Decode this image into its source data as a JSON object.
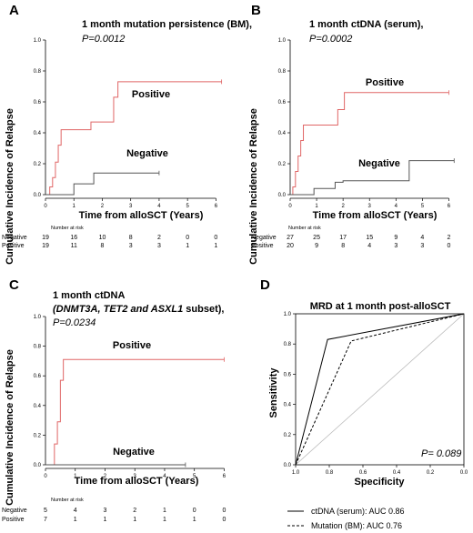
{
  "colors": {
    "positive": "#e06666",
    "negative": "#555555",
    "axis": "#000000",
    "diagonal": "#bbbbbb"
  },
  "chart_data": [
    {
      "panel": "A",
      "type": "line",
      "title": "1 month mutation persistence  (BM),",
      "pvalue_label": "P=0.0012",
      "xlabel": "Time from alloSCT (Years)",
      "ylabel": "Cumulative Incidence of Relapse",
      "xlim": [
        0,
        6.5
      ],
      "ylim": [
        0,
        1.0
      ],
      "xticks": [
        0,
        1,
        2,
        3,
        4,
        5,
        6
      ],
      "yticks": [
        0.0,
        0.2,
        0.4,
        0.6,
        0.8,
        1.0
      ],
      "series": [
        {
          "name": "Positive",
          "x": [
            0,
            0.15,
            0.25,
            0.35,
            0.45,
            0.55,
            1.4,
            1.6,
            2.4,
            2.55,
            6.2
          ],
          "y": [
            0,
            0.05,
            0.11,
            0.21,
            0.32,
            0.42,
            0.42,
            0.47,
            0.63,
            0.73,
            0.73
          ]
        },
        {
          "name": "Negative",
          "x": [
            0,
            1.0,
            1.6,
            1.7,
            4.0
          ],
          "y": [
            0,
            0.07,
            0.07,
            0.14,
            0.14
          ]
        }
      ],
      "risk_table": {
        "header": "Number at risk",
        "rows": [
          {
            "label": "Negative",
            "values": [
              "19",
              "16",
              "10",
              "8",
              "2",
              "0",
              "0"
            ]
          },
          {
            "label": "Positive",
            "values": [
              "19",
              "11",
              "8",
              "3",
              "3",
              "1",
              "1"
            ]
          }
        ]
      }
    },
    {
      "panel": "B",
      "type": "line",
      "title": "1 month ctDNA (serum),",
      "pvalue_label": "P=0.0002",
      "xlabel": "Time from alloSCT (Years)",
      "ylabel": "Cumulative Incidence of Relapse",
      "xlim": [
        0,
        6.5
      ],
      "ylim": [
        0,
        1.0
      ],
      "xticks": [
        0,
        1,
        2,
        3,
        4,
        5,
        6
      ],
      "yticks": [
        0.0,
        0.2,
        0.4,
        0.6,
        0.8,
        1.0
      ],
      "series": [
        {
          "name": "Positive",
          "x": [
            0,
            0.1,
            0.2,
            0.3,
            0.4,
            0.5,
            1.6,
            1.8,
            2.05,
            6.0
          ],
          "y": [
            0,
            0.05,
            0.15,
            0.25,
            0.35,
            0.45,
            0.45,
            0.55,
            0.66,
            0.66
          ]
        },
        {
          "name": "Negative",
          "x": [
            0,
            0.9,
            1.2,
            1.7,
            2.0,
            4.5,
            6.2
          ],
          "y": [
            0,
            0.04,
            0.04,
            0.08,
            0.09,
            0.22,
            0.22
          ]
        }
      ],
      "risk_table": {
        "header": "Number at risk",
        "rows": [
          {
            "label": "Negative",
            "values": [
              "27",
              "25",
              "17",
              "15",
              "9",
              "4",
              "2"
            ]
          },
          {
            "label": "Positive",
            "values": [
              "20",
              "9",
              "8",
              "4",
              "3",
              "3",
              "0"
            ]
          }
        ]
      }
    },
    {
      "panel": "C",
      "type": "line",
      "title": "1 month ctDNA",
      "subtitle_italic": "(DNMT3A, TET2 and ASXL1",
      "subtitle_plain": " subset),",
      "pvalue_label": "P=0.0234",
      "xlabel": "Time from alloSCT (Years)",
      "ylabel": "Cumulative Incidence of Relapse",
      "xlim": [
        0,
        6.2
      ],
      "ylim": [
        0,
        1.0
      ],
      "xticks": [
        0,
        1,
        2,
        3,
        4,
        5,
        6
      ],
      "yticks": [
        0.0,
        0.2,
        0.4,
        0.6,
        0.8,
        1.0
      ],
      "series": [
        {
          "name": "Positive",
          "x": [
            0,
            0.3,
            0.4,
            0.5,
            0.6,
            6.0
          ],
          "y": [
            0,
            0.14,
            0.29,
            0.57,
            0.71,
            0.71
          ]
        },
        {
          "name": "Negative",
          "x": [
            0,
            4.7
          ],
          "y": [
            0,
            0
          ]
        }
      ],
      "risk_table": {
        "header": "Number at risk",
        "rows": [
          {
            "label": "Negative",
            "values": [
              "5",
              "4",
              "3",
              "2",
              "1",
              "0",
              "0"
            ]
          },
          {
            "label": "Positive",
            "values": [
              "7",
              "1",
              "1",
              "1",
              "1",
              "1",
              "0"
            ]
          }
        ]
      }
    },
    {
      "panel": "D",
      "type": "line",
      "title": "MRD at 1 month post-alloSCT",
      "xlabel": "Specificity",
      "ylabel": "Sensitivity",
      "xlim": [
        1.0,
        0.0
      ],
      "ylim": [
        0,
        1.0
      ],
      "xticks": [
        1.0,
        0.8,
        0.6,
        0.4,
        0.2,
        0.0
      ],
      "yticks": [
        0.0,
        0.2,
        0.4,
        0.6,
        0.8,
        1.0
      ],
      "pvalue_label": "P= 0.089",
      "series": [
        {
          "name": "ctDNA (serum): AUC 0.86",
          "x": [
            1.0,
            0.81,
            0.0
          ],
          "y": [
            0.0,
            0.83,
            1.0
          ]
        },
        {
          "name": "Mutation (BM): AUC 0.76",
          "x": [
            1.0,
            0.67,
            0.0
          ],
          "y": [
            0.0,
            0.82,
            1.0
          ]
        }
      ]
    }
  ]
}
